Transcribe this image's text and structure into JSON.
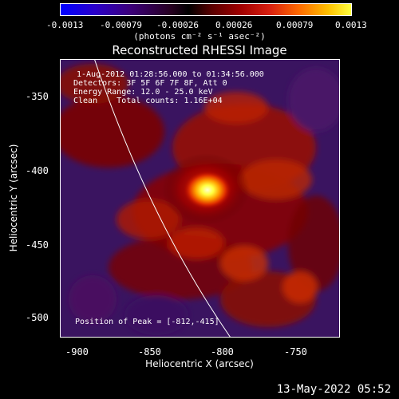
{
  "colorbar": {
    "ticks": [
      "-0.0013",
      "-0.00079",
      "-0.00026",
      "0.00026",
      "0.00079",
      "0.0013"
    ],
    "units_label": "(photons cm⁻² s⁻¹ asec⁻²)"
  },
  "title": "Reconstructed RHESSI Image",
  "annotations": {
    "time_range": "1-Aug-2012 01:28:56.000 to 01:34:56.000",
    "detectors": "Detectors: 3F 5F 6F 7F 8F, Att 0",
    "energy": "Energy Range: 12.0 - 25.0 keV",
    "clean": "Clean    Total counts: 1.16E+04",
    "peak": "Position of Peak = [-812,-415]"
  },
  "axes": {
    "xlabel": "Heliocentric X (arcsec)",
    "ylabel": "Heliocentric Y (arcsec)",
    "xticks": [
      "-900",
      "-850",
      "-800",
      "-750"
    ],
    "yticks": [
      "-350",
      "-400",
      "-450",
      "-500"
    ]
  },
  "footer": "13-May-2022 05:52"
}
